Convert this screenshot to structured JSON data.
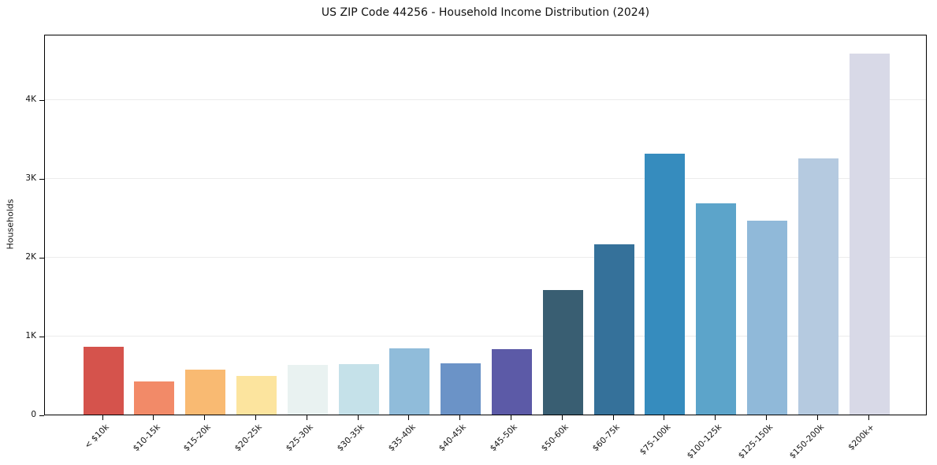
{
  "figure": {
    "title": "US ZIP Code 44256 - Household Income Distribution (2024)",
    "background": "#ffffff"
  },
  "chart_data": {
    "type": "bar",
    "title": "US ZIP Code 44256 - Household Income Distribution (2024)",
    "xlabel": "",
    "ylabel": "Households",
    "categories": [
      "< $10k",
      "$10-15k",
      "$15-20k",
      "$20-25k",
      "$25-30k",
      "$30-35k",
      "$35-40k",
      "$40-45k",
      "$45-50k",
      "$50-60k",
      "$60-75k",
      "$75-100k",
      "$100-125k",
      "$125-150k",
      "$150-200k",
      "$200k+"
    ],
    "values": [
      860,
      420,
      570,
      490,
      630,
      640,
      840,
      650,
      830,
      1590,
      2170,
      3320,
      2690,
      2470,
      3260,
      4600
    ],
    "bar_colors": [
      "#d5534c",
      "#f28a68",
      "#f9ba72",
      "#fce49e",
      "#e9f2f1",
      "#c5e1e9",
      "#90bcda",
      "#6b93c7",
      "#5c5aa7",
      "#395e72",
      "#35719a",
      "#368cbe",
      "#5ca4ca",
      "#90b9d9",
      "#b5cae0",
      "#d8d9e7"
    ],
    "ylim": [
      0,
      4830
    ],
    "yticks": {
      "values": [
        0,
        1000,
        2000,
        3000,
        4000
      ],
      "labels": [
        "0",
        "1K",
        "2K",
        "3K",
        "4K"
      ]
    },
    "grid": "horizontal",
    "grid_color": "#ececec",
    "spine_color": "#000000",
    "legend": "none",
    "x_tick_rotation_deg": 45
  }
}
